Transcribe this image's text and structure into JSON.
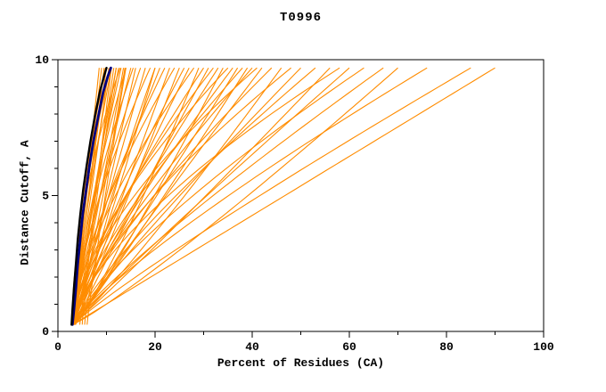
{
  "chart_data": {
    "type": "line",
    "title": "T0996",
    "xlabel": "Percent of Residues (CA)",
    "ylabel": "Distance Cutoff, A",
    "xlim": [
      0,
      100
    ],
    "ylim": [
      0,
      10
    ],
    "x_ticks": [
      0,
      20,
      40,
      60,
      80,
      100
    ],
    "y_ticks": [
      0,
      5,
      10
    ],
    "x_minor_step": 10,
    "y_minor_step": 1,
    "grid": false,
    "legend": "none",
    "colors": {
      "model_orange": "#ff8c00",
      "reference_navy": "#000080",
      "best_black": "#000000",
      "axis": "#000000"
    },
    "curve_y_start": 0.25,
    "curve_y_end": 9.7,
    "orange_curves": [
      [
        3.0,
        8.5,
        1.0
      ],
      [
        3.2,
        9.0,
        1.1
      ],
      [
        2.8,
        9.5,
        0.95
      ],
      [
        3.0,
        9.8,
        1.6
      ],
      [
        3.5,
        10.0,
        1.2
      ],
      [
        3.0,
        10.5,
        1.0
      ],
      [
        3.4,
        10.8,
        1.7
      ],
      [
        3.3,
        11.0,
        1.3
      ],
      [
        2.9,
        11.5,
        0.9
      ],
      [
        3.6,
        12.0,
        1.15
      ],
      [
        3.1,
        12.5,
        1.05
      ],
      [
        2.9,
        12.8,
        1.8
      ],
      [
        3.4,
        13.0,
        1.25
      ],
      [
        2.7,
        13.5,
        0.85
      ],
      [
        3.1,
        13.8,
        0.8
      ],
      [
        3.2,
        14.0,
        1.4
      ],
      [
        3.0,
        15.0,
        1.1
      ],
      [
        3.5,
        15.5,
        1.5
      ],
      [
        3.5,
        16.0,
        0.95
      ],
      [
        2.8,
        17.0,
        1.3
      ],
      [
        3.3,
        18.0,
        1.05
      ],
      [
        3.1,
        19.0,
        1.5
      ],
      [
        2.9,
        20.0,
        0.9
      ],
      [
        3.4,
        21.0,
        1.2
      ],
      [
        3.0,
        22.0,
        1.35
      ],
      [
        3.6,
        23.0,
        1.0
      ],
      [
        2.8,
        24.0,
        1.45
      ],
      [
        3.2,
        25.0,
        0.95
      ],
      [
        3.5,
        26.0,
        1.25
      ],
      [
        3.0,
        27.0,
        1.1
      ],
      [
        2.9,
        28.0,
        1.5
      ],
      [
        3.3,
        29.0,
        0.85
      ],
      [
        3.1,
        30.0,
        1.3
      ],
      [
        3.6,
        31.0,
        1.05
      ],
      [
        2.8,
        32.0,
        1.4
      ],
      [
        3.2,
        33.0,
        1.15
      ],
      [
        3.4,
        34.0,
        0.9
      ],
      [
        3.0,
        35.0,
        1.55
      ],
      [
        2.9,
        36.0,
        1.2
      ],
      [
        3.5,
        37.0,
        1.0
      ],
      [
        3.1,
        38.0,
        1.35
      ],
      [
        3.3,
        39.0,
        0.95
      ],
      [
        2.8,
        40.0,
        1.25
      ],
      [
        3.2,
        41.0,
        1.6
      ],
      [
        3.6,
        42.0,
        1.05
      ],
      [
        3.0,
        44.0,
        1.3
      ],
      [
        2.9,
        46.0,
        0.9
      ],
      [
        3.4,
        48.0,
        1.45
      ],
      [
        3.1,
        50.0,
        1.1
      ],
      [
        3.3,
        53.0,
        1.25
      ],
      [
        2.8,
        56.0,
        0.95
      ],
      [
        3.2,
        58.0,
        1.5
      ],
      [
        3.0,
        60.0,
        1.05
      ],
      [
        3.5,
        63.0,
        1.3
      ],
      [
        2.9,
        67.0,
        1.15
      ],
      [
        3.1,
        70.0,
        0.9
      ],
      [
        3.3,
        76.0,
        1.2
      ],
      [
        3.2,
        85.0,
        1.1
      ],
      [
        3.0,
        90.0,
        1.0
      ],
      [
        5.0,
        12.0,
        1.2
      ],
      [
        6.0,
        14.0,
        1.1
      ],
      [
        4.5,
        11.0,
        1.0
      ],
      [
        5.5,
        20.0,
        1.3
      ]
    ],
    "navy_curve": [
      [
        3.0,
        0.25
      ],
      [
        3.3,
        0.8
      ],
      [
        3.7,
        1.6
      ],
      [
        4.1,
        2.5
      ],
      [
        4.6,
        3.4
      ],
      [
        5.1,
        4.3
      ],
      [
        5.8,
        5.2
      ],
      [
        6.5,
        6.1
      ],
      [
        7.3,
        7.0
      ],
      [
        8.3,
        7.9
      ],
      [
        9.3,
        8.8
      ],
      [
        10.3,
        9.4
      ],
      [
        10.9,
        9.7
      ]
    ],
    "black_curve": [
      [
        2.8,
        0.25
      ],
      [
        3.0,
        0.8
      ],
      [
        3.3,
        1.6
      ],
      [
        3.7,
        2.5
      ],
      [
        4.1,
        3.4
      ],
      [
        4.6,
        4.3
      ],
      [
        5.2,
        5.2
      ],
      [
        5.9,
        6.1
      ],
      [
        6.7,
        7.0
      ],
      [
        7.6,
        7.9
      ],
      [
        8.6,
        8.8
      ],
      [
        9.5,
        9.4
      ],
      [
        10.0,
        9.7
      ]
    ]
  }
}
